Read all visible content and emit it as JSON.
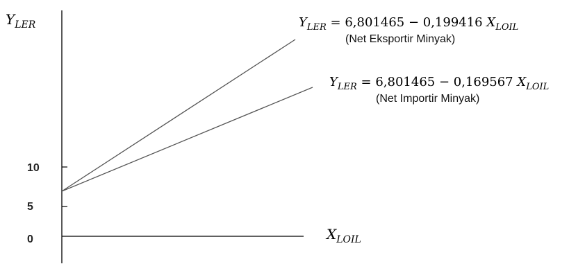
{
  "chart_data": {
    "type": "line",
    "y_axis_label": {
      "base": "Y",
      "sub": "LER"
    },
    "x_axis_label": {
      "base": "X",
      "sub": "LOIL"
    },
    "y_ticks": [
      {
        "value": 0,
        "label": "0"
      },
      {
        "value": 5,
        "label": "5"
      },
      {
        "value": 10,
        "label": "10"
      }
    ],
    "series": [
      {
        "name": "(Net Eksportir Minyak)",
        "intercept": 6.801465,
        "coefficient": "0,199416",
        "equation": {
          "lhs_base": "Y",
          "lhs_sub": "LER",
          "rhs": " = 6,801465 − 0,199416 ",
          "var_base": "X",
          "var_sub": "LOIL"
        },
        "color": "#555555"
      },
      {
        "name": "(Net Importir Minyak)",
        "intercept": 6.801465,
        "coefficient": "0,169567",
        "equation": {
          "lhs_base": "Y",
          "lhs_sub": "LER",
          "rhs": " = 6,801465 − 0,169567 ",
          "var_base": "X",
          "var_sub": "LOIL"
        },
        "color": "#555555"
      }
    ],
    "grid": false,
    "axis_color": "#000000"
  }
}
